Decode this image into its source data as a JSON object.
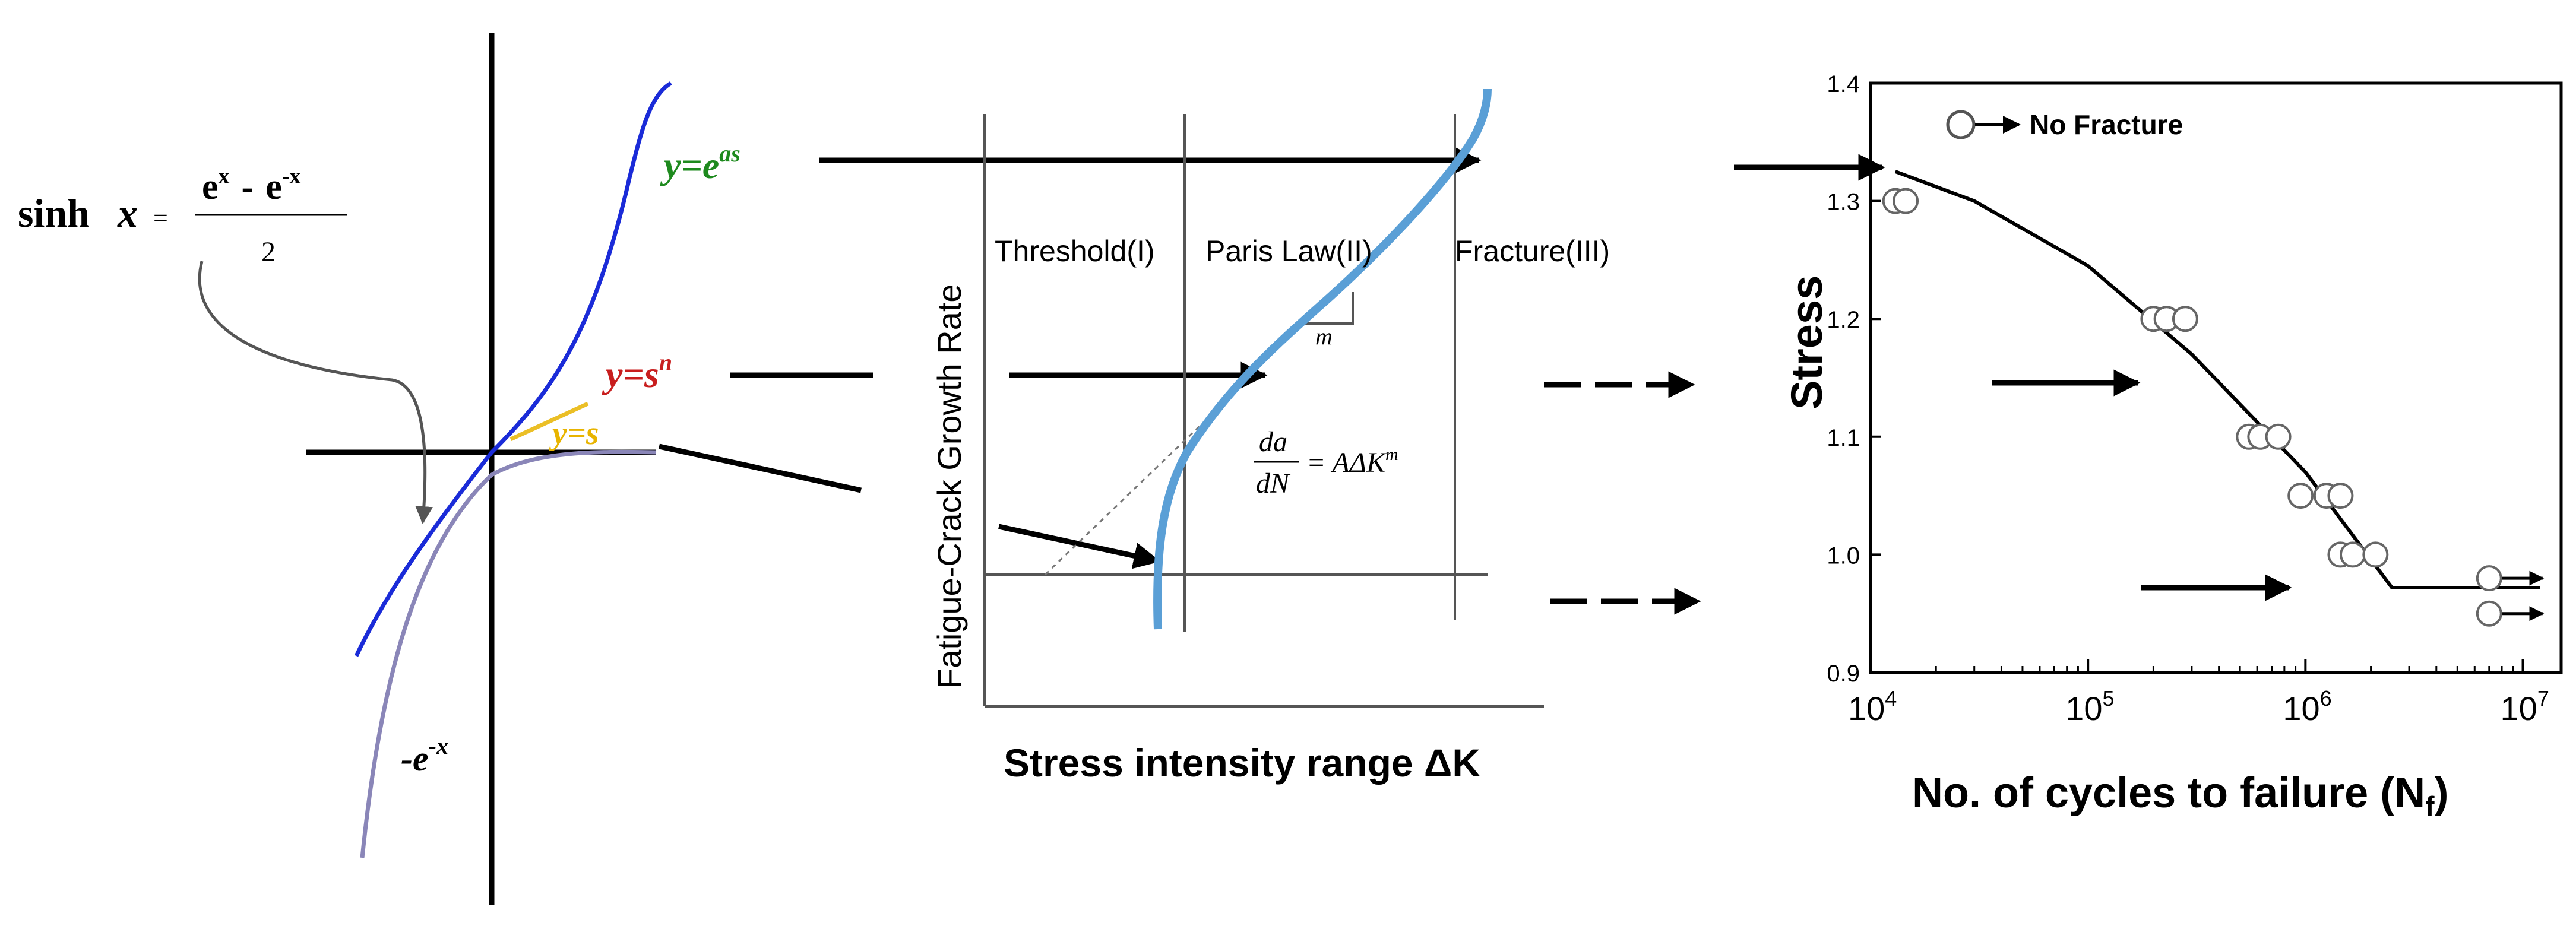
{
  "colors": {
    "sinh_curve": "#1a2bd8",
    "neg_exp_curve": "#8a86b8",
    "exp_label": "#1e8a1e",
    "power_label": "#c81e1e",
    "linear_label": "#e8b400",
    "paris_curve": "#5a9fd6",
    "ink": "#000000",
    "light_line": "#555555",
    "marker_fill": "#ffffff"
  },
  "panel_sinh": {
    "formula_prefix": "sinh",
    "formula_var": "x",
    "formula_eq": "=",
    "numerator_base1": "e",
    "numerator_exp1": "x",
    "numerator_minus": "-",
    "numerator_base2": "e",
    "numerator_exp2": "-x",
    "denominator": "2",
    "label_exp_base": "y=e",
    "label_exp_sup": "as",
    "label_power_base": "y=s",
    "label_power_sup": "n",
    "label_linear": "y=s",
    "label_neg_base": "-e",
    "label_neg_sup": "-x"
  },
  "panel_paris": {
    "ylabel": "Fatigue-Crack Growth Rate",
    "xlabel": "Stress intensity range ΔK",
    "region1": "Threshold(I)",
    "region2": "Paris Law(II)",
    "region3": "Fracture(III)",
    "slope_label": "m",
    "eq_num": "da",
    "eq_den": "dN",
    "eq_rhs": "= AΔK",
    "eq_rhs_sup": "m"
  },
  "chart_data": {
    "type": "scatter",
    "xlabel": "No. of cycles to failure (N",
    "xlabel_sub": "f",
    "xlabel_end": ")",
    "ylabel": "Stress",
    "xscale": "log",
    "xlim": [
      10000,
      15000000
    ],
    "ylim": [
      0.9,
      1.4
    ],
    "x_ticks": [
      {
        "value": 10000,
        "base": "10",
        "exp": "4"
      },
      {
        "value": 100000,
        "base": "10",
        "exp": "5"
      },
      {
        "value": 1000000,
        "base": "10",
        "exp": "6"
      },
      {
        "value": 10000000,
        "base": "10",
        "exp": "7"
      }
    ],
    "y_ticks": [
      "0.9",
      "1.0",
      "1.1",
      "1.2",
      "1.3",
      "1.4"
    ],
    "legend_label": "No Fracture",
    "legend_placement": "top-left",
    "points": [
      {
        "x": 13000,
        "y": 1.3
      },
      {
        "x": 14500,
        "y": 1.3
      },
      {
        "x": 200000,
        "y": 1.2
      },
      {
        "x": 230000,
        "y": 1.2
      },
      {
        "x": 280000,
        "y": 1.2
      },
      {
        "x": 550000,
        "y": 1.1
      },
      {
        "x": 620000,
        "y": 1.1
      },
      {
        "x": 750000,
        "y": 1.1
      },
      {
        "x": 950000,
        "y": 1.05
      },
      {
        "x": 1250000,
        "y": 1.05
      },
      {
        "x": 1450000,
        "y": 1.05
      },
      {
        "x": 1450000,
        "y": 1.0
      },
      {
        "x": 1650000,
        "y": 1.0
      },
      {
        "x": 2100000,
        "y": 1.0
      }
    ],
    "runouts": [
      {
        "x": 7000000,
        "y": 0.98
      },
      {
        "x": 7000000,
        "y": 0.95
      }
    ],
    "fit_curve": [
      {
        "x": 13000,
        "y": 1.325
      },
      {
        "x": 30000,
        "y": 1.3
      },
      {
        "x": 100000,
        "y": 1.245
      },
      {
        "x": 300000,
        "y": 1.17
      },
      {
        "x": 1000000,
        "y": 1.07
      },
      {
        "x": 2500000,
        "y": 0.972
      },
      {
        "x": 12000000,
        "y": 0.972
      }
    ]
  }
}
